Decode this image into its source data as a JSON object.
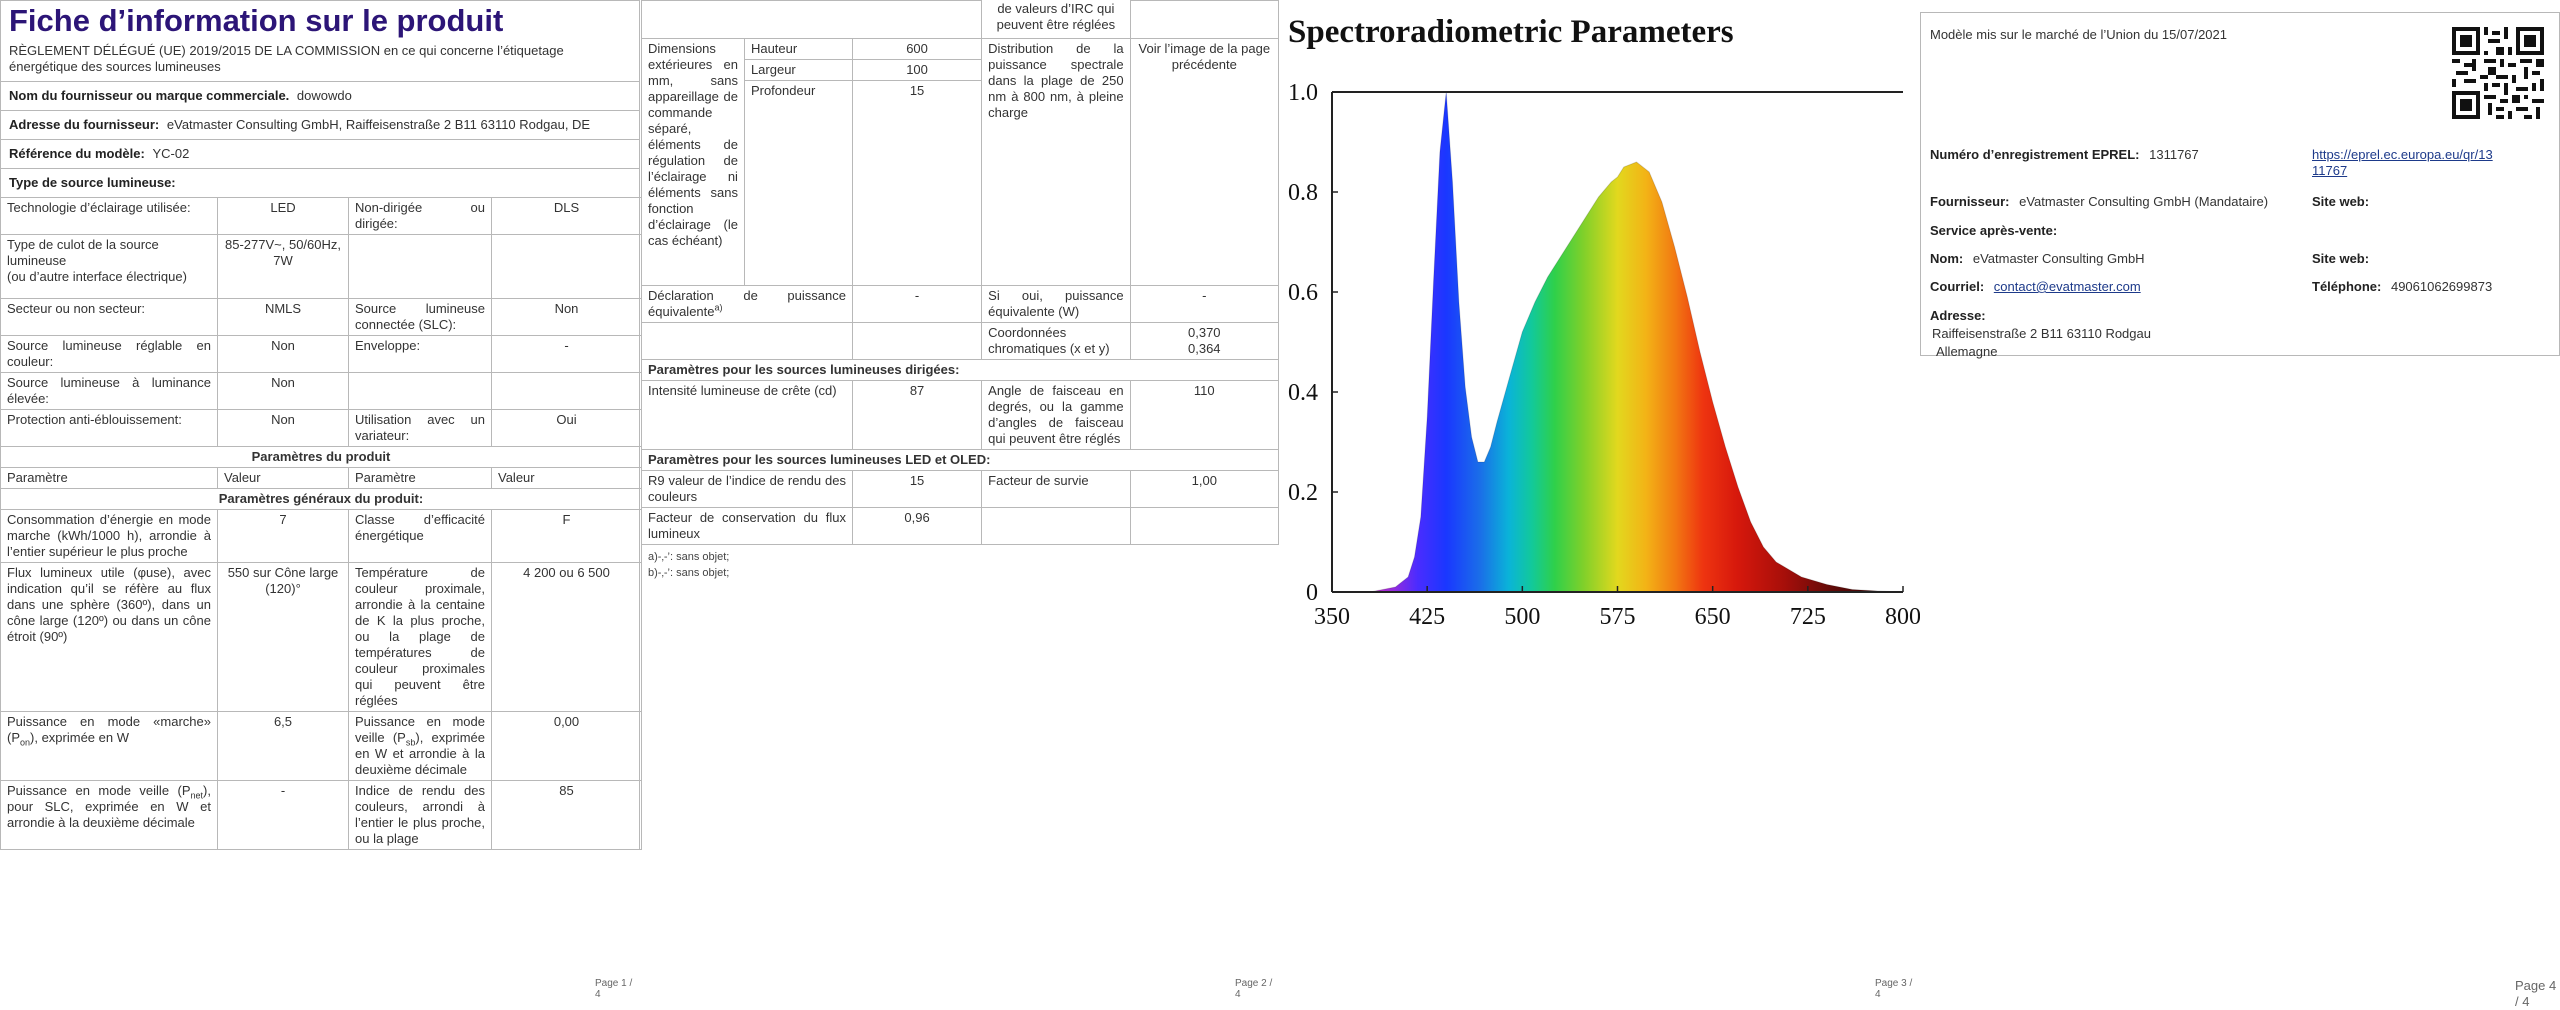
{
  "p1": {
    "title": "Fiche d’information sur le produit",
    "regulation": "RÈGLEMENT DÉLÉGUÉ (UE) 2019/2015 DE LA COMMISSION en ce qui concerne l’étiquetage énergétique des sources lumineuses",
    "supplier_name_label": "Nom du fournisseur ou marque commerciale.",
    "supplier_name": "dowowdo",
    "supplier_address_label": "Adresse du fournisseur:",
    "supplier_address": "eVatmaster Consulting GmbH, Raiffeisenstraße 2 B11 63110 Rodgau, DE",
    "model_label": "Référence du modèle:",
    "model": "YC-02",
    "light_type_label": "Type de source lumineuse:",
    "t1": {
      "r1": {
        "a": "Technologie d’éclairage utilisée:",
        "b": "LED",
        "c": "Non-dirigée ou dirigée:",
        "d": "DLS"
      },
      "r2": {
        "a1": "Type de culot de la source lumineuse",
        "a2": "(ou d’autre interface électrique)",
        "b": "85-277V~, 50/60Hz, 7W",
        "c": "",
        "d": ""
      },
      "r3": {
        "a": "Secteur ou non secteur:",
        "b": "NMLS",
        "c": "Source lumineuse connectée (SLC):",
        "d": "Non"
      },
      "r4": {
        "a": "Source lumineuse réglable en couleur:",
        "b": "Non",
        "c": "Enveloppe:",
        "d": "-"
      },
      "r5": {
        "a": "Source lumineuse à luminance élevée:",
        "b": "Non",
        "c": "",
        "d": ""
      },
      "r6": {
        "a": "Protection anti-éblouissement:",
        "b": "Non",
        "c": "Utilisation avec un variateur:",
        "d": "Oui"
      }
    },
    "params_title": "Paramètres du produit",
    "col_param": "Paramètre",
    "col_value": "Valeur",
    "general_title": "Paramètres généraux du produit:",
    "t2": {
      "r1": {
        "a": "Consommation d’énergie en mode marche (kWh/1000 h), arrondie à l’entier supérieur le plus proche",
        "b": "7",
        "c": "Classe d’efficacité énergétique",
        "d": "F"
      },
      "r2": {
        "a": "Flux lumineux utile (φuse), avec indication qu’il se réfère au flux dans une sphère (360º), dans un cône large (120º) ou dans un cône étroit (90º)",
        "b": "550 sur Cône large (120)°",
        "c": "Température de couleur proximale, arrondie à la centaine de K la plus proche, ou la plage de températures de couleur proximales qui peuvent être réglées",
        "d": "4 200 ou 6 500"
      },
      "r3": {
        "a_pre": "Puissance en mode «marche» (P",
        "a_sub": "on",
        "a_post": "), exprimée en W",
        "b": "6,5",
        "c_pre": "Puissance en mode veille (P",
        "c_sub": "sb",
        "c_post": "), exprimée en W et arrondie à la deuxième décimale",
        "d": "0,00"
      },
      "r4": {
        "a_pre": "Puissance en mode veille (P",
        "a_sub": "net",
        "a_post": "), pour SLC, exprimée en W et arrondie à la deuxième décimale",
        "b": "-",
        "c": "Indice de rendu des couleurs, arrondi à l’entier le plus proche, ou la plage",
        "d": "85"
      }
    },
    "footer": "Page 1 / 4"
  },
  "p2": {
    "cont_text": "de valeurs d’IRC qui peuvent être réglées",
    "dim_label": "Dimensions extérieures en mm, sans appareillage de commande séparé, éléments de régulation de l’éclairage ni éléments sans fonction d’éclairage (le cas échéant)",
    "dims": [
      {
        "name": "Hauteur",
        "value": "600"
      },
      {
        "name": "Largeur",
        "value": "100"
      },
      {
        "name": "Profondeur",
        "value": "15"
      }
    ],
    "spd_label": "Distribution de la puissance spectrale dans la plage de 250 nm à 800 nm, à pleine charge",
    "spd_value": "Voir l’image de la page précédente",
    "eq_label": "Déclaration de puissance équivalente",
    "eq_sup": "a)",
    "eq_value": "-",
    "eq_if_label": "Si oui, puissance équivalente (W)",
    "eq_if_value": "-",
    "chroma_label": "Coordonnées chromatiques (x et y)",
    "chroma_x": "0,370",
    "chroma_y": "0,364",
    "directed_title": "Paramètres pour les sources lumineuses dirigées:",
    "peak_label": "Intensité lumineuse de crête (cd)",
    "peak_value": "87",
    "beam_label": "Angle de faisceau en degrés, ou la gamme d’angles de faisceau qui peuvent être réglés",
    "beam_value": "110",
    "led_title": "Paramètres pour les sources lumineuses LED et OLED:",
    "r9_label": "R9 valeur de l’indice de rendu des couleurs",
    "r9_value": "15",
    "survival_label": "Facteur de survie",
    "survival_value": "1,00",
    "flux_label": "Facteur de conservation du flux lumineux",
    "flux_value": "0,96",
    "note_a": "a)-‚-’: sans objet;",
    "note_b": "b)-‚-’: sans objet;",
    "footer": "Page 2 / 4"
  },
  "p3": {
    "chart_data": {
      "type": "area",
      "title": "Spectroradiometric Parameters",
      "xlabel": "",
      "ylabel": "",
      "xlim": [
        350,
        800
      ],
      "ylim": [
        0,
        1.0
      ],
      "x_ticks": [
        "350",
        "425",
        "500",
        "575",
        "650",
        "725",
        "800"
      ],
      "y_ticks": [
        "0",
        "0.2",
        "0.4",
        "0.6",
        "0.8",
        "1.0"
      ],
      "grid": false,
      "x": [
        350,
        380,
        400,
        410,
        415,
        420,
        425,
        430,
        435,
        440,
        445,
        450,
        455,
        460,
        465,
        470,
        475,
        480,
        490,
        500,
        510,
        520,
        530,
        540,
        550,
        560,
        570,
        575,
        580,
        590,
        600,
        610,
        620,
        630,
        640,
        650,
        660,
        670,
        680,
        690,
        700,
        720,
        740,
        760,
        780,
        800
      ],
      "y": [
        0,
        0,
        0.01,
        0.03,
        0.07,
        0.15,
        0.35,
        0.62,
        0.88,
        1.0,
        0.82,
        0.58,
        0.41,
        0.31,
        0.26,
        0.26,
        0.29,
        0.34,
        0.43,
        0.52,
        0.58,
        0.63,
        0.67,
        0.71,
        0.75,
        0.79,
        0.82,
        0.83,
        0.85,
        0.86,
        0.84,
        0.78,
        0.69,
        0.59,
        0.48,
        0.38,
        0.29,
        0.21,
        0.14,
        0.09,
        0.06,
        0.03,
        0.015,
        0.005,
        0.002,
        0
      ]
    },
    "footer": "Page 3 / 4"
  },
  "p4": {
    "market_text": "Modèle mis sur le marché de l’Union du 15/07/2021",
    "eprel_label": "Numéro d’enregistrement EPREL:",
    "eprel_value": "1311767",
    "eprel_link_1": "https://eprel.ec.europa.eu/qr/13",
    "eprel_link_2": "11767",
    "supplier_label": "Fournisseur:",
    "supplier_value": "eVatmaster Consulting GmbH (Mandataire)",
    "website_label": "Site web:",
    "service_label": "Service après-vente:",
    "name_label": "Nom:",
    "name_value": "eVatmaster Consulting GmbH",
    "website_label2": "Site web:",
    "email_label": "Courriel:",
    "email_value": "contact@evatmaster.com",
    "phone_label": "Téléphone:",
    "phone_value": "49061062699873",
    "address_label": "Adresse:",
    "address_line1": "Raiffeisenstraße 2 B11 63110 Rodgau",
    "address_line2": "Allemagne",
    "footer": "Page 4 / 4"
  }
}
